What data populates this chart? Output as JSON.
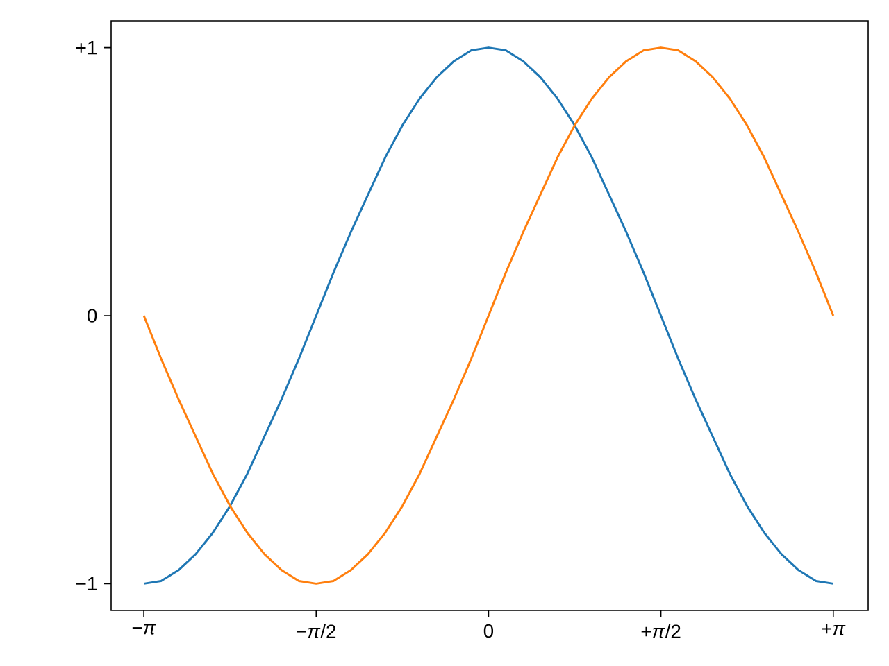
{
  "chart_data": {
    "type": "line",
    "x": [
      -3.142,
      -2.985,
      -2.827,
      -2.67,
      -2.513,
      -2.356,
      -2.199,
      -2.042,
      -1.885,
      -1.728,
      -1.571,
      -1.414,
      -1.257,
      -1.1,
      -0.942,
      -0.785,
      -0.628,
      -0.471,
      -0.314,
      -0.157,
      0,
      0.157,
      0.314,
      0.471,
      0.628,
      0.785,
      0.942,
      1.1,
      1.257,
      1.414,
      1.571,
      1.728,
      1.885,
      2.042,
      2.199,
      2.356,
      2.513,
      2.67,
      2.827,
      2.985,
      3.142
    ],
    "series": [
      {
        "color": "#1f77b4",
        "values": [
          -1,
          -0.99,
          -0.95,
          -0.89,
          -0.81,
          -0.71,
          -0.59,
          -0.45,
          -0.31,
          -0.16,
          0,
          0.16,
          0.31,
          0.45,
          0.59,
          0.71,
          0.81,
          0.89,
          0.95,
          0.99,
          1,
          0.99,
          0.95,
          0.89,
          0.81,
          0.71,
          0.59,
          0.45,
          0.31,
          0.16,
          0,
          -0.16,
          -0.31,
          -0.45,
          -0.59,
          -0.71,
          -0.81,
          -0.89,
          -0.95,
          -0.99,
          -1
        ]
      },
      {
        "color": "#ff7f0e",
        "values": [
          0,
          -0.16,
          -0.31,
          -0.45,
          -0.59,
          -0.71,
          -0.81,
          -0.89,
          -0.95,
          -0.99,
          -1,
          -0.99,
          -0.95,
          -0.89,
          -0.81,
          -0.71,
          -0.59,
          -0.45,
          -0.31,
          -0.16,
          0,
          0.16,
          0.31,
          0.45,
          0.59,
          0.71,
          0.81,
          0.89,
          0.95,
          0.99,
          1,
          0.99,
          0.95,
          0.89,
          0.81,
          0.71,
          0.59,
          0.45,
          0.31,
          0.16,
          0
        ]
      }
    ],
    "xlim": [
      -3.44,
      3.46
    ],
    "ylim": [
      -1.1,
      1.1
    ],
    "xticks": [
      {
        "value": -3.142,
        "label": "−*π*"
      },
      {
        "value": -1.571,
        "label": "−*π*/2"
      },
      0,
      {
        "value": 1.571,
        "label": "+*π*/2"
      },
      {
        "value": 3.142,
        "label": "+*π*"
      }
    ],
    "yticks": [
      {
        "value": -1,
        "label": "−1"
      },
      0,
      {
        "value": 1,
        "label": "+1"
      }
    ],
    "grid": false,
    "marker": "none",
    "line_style": "solid"
  }
}
